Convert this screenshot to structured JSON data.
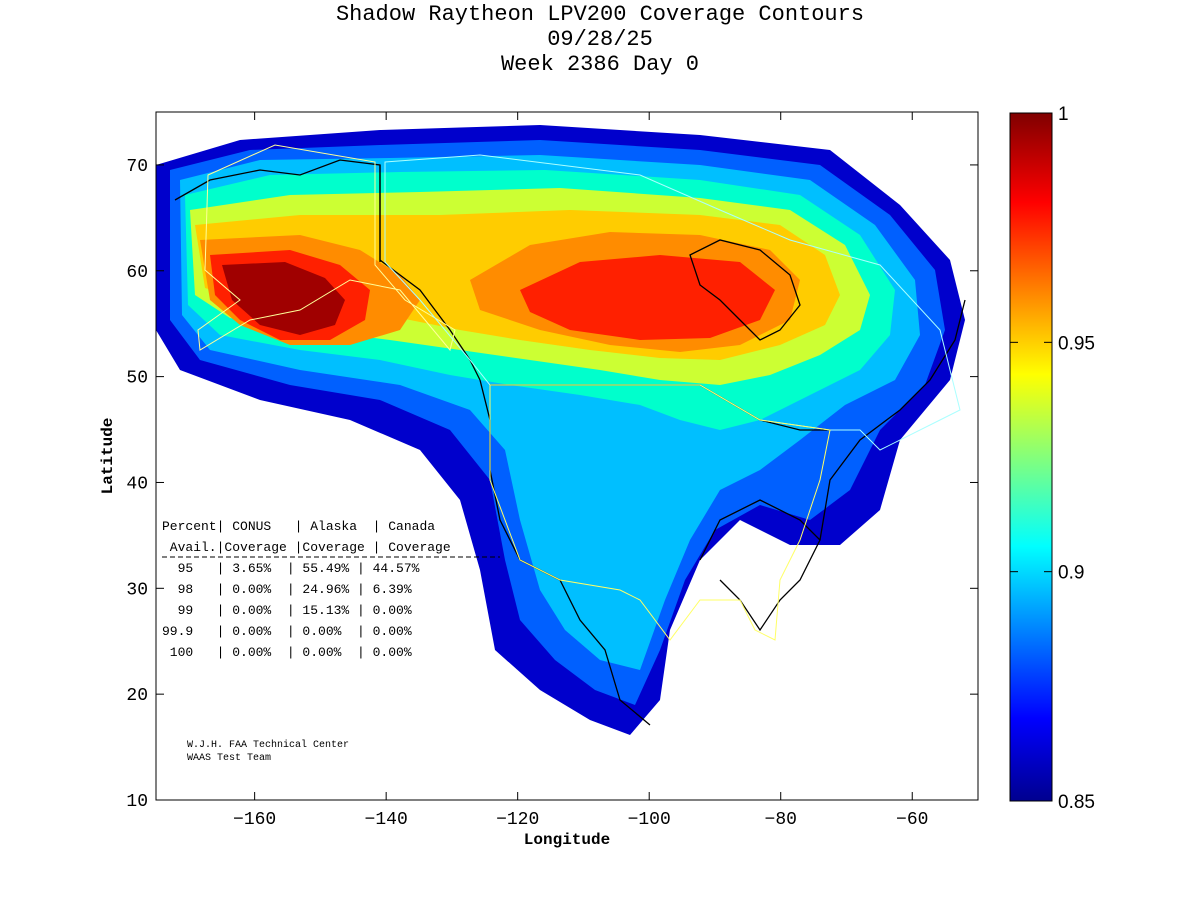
{
  "chart_data": {
    "type": "heatmap",
    "title": "Shadow Raytheon LPV200 Coverage Contours",
    "subtitle_date": "09/28/25",
    "subtitle_week": "Week 2386 Day 0",
    "xlabel": "Longitude",
    "ylabel": "Latitude",
    "xlim": [
      -175,
      -50
    ],
    "ylim": [
      10,
      75
    ],
    "xticks": [
      -160,
      -140,
      -120,
      -100,
      -80,
      -60
    ],
    "yticks": [
      10,
      20,
      30,
      40,
      50,
      60,
      70
    ],
    "colorbar": {
      "min": 0.85,
      "max": 1,
      "ticks": [
        0.85,
        0.9,
        0.95,
        1
      ],
      "tick_labels": [
        "0.85",
        "0.9",
        "0.95",
        "1"
      ]
    },
    "hotspots": [
      {
        "region": "Alaska",
        "lon": -155,
        "lat": 57,
        "value": 1.0
      },
      {
        "region": "Canada",
        "lon": -103,
        "lat": 56,
        "value": 0.985
      }
    ],
    "table": {
      "header1": "Percent| CONUS   | Alaska  | Canada",
      "header2": " Avail.|Coverage |Coverage | Coverage",
      "rows": [
        "  95   | 3.65%  | 55.49% | 44.57%",
        "  98   | 0.00%  | 24.96% | 6.39%",
        "  99   | 0.00%  | 15.13% | 0.00%",
        "99.9   | 0.00%  | 0.00%  | 0.00%",
        " 100   | 0.00%  | 0.00%  | 0.00%"
      ]
    },
    "credit_line1": "W.J.H. FAA Technical Center",
    "credit_line2": "WAAS Test Team"
  }
}
